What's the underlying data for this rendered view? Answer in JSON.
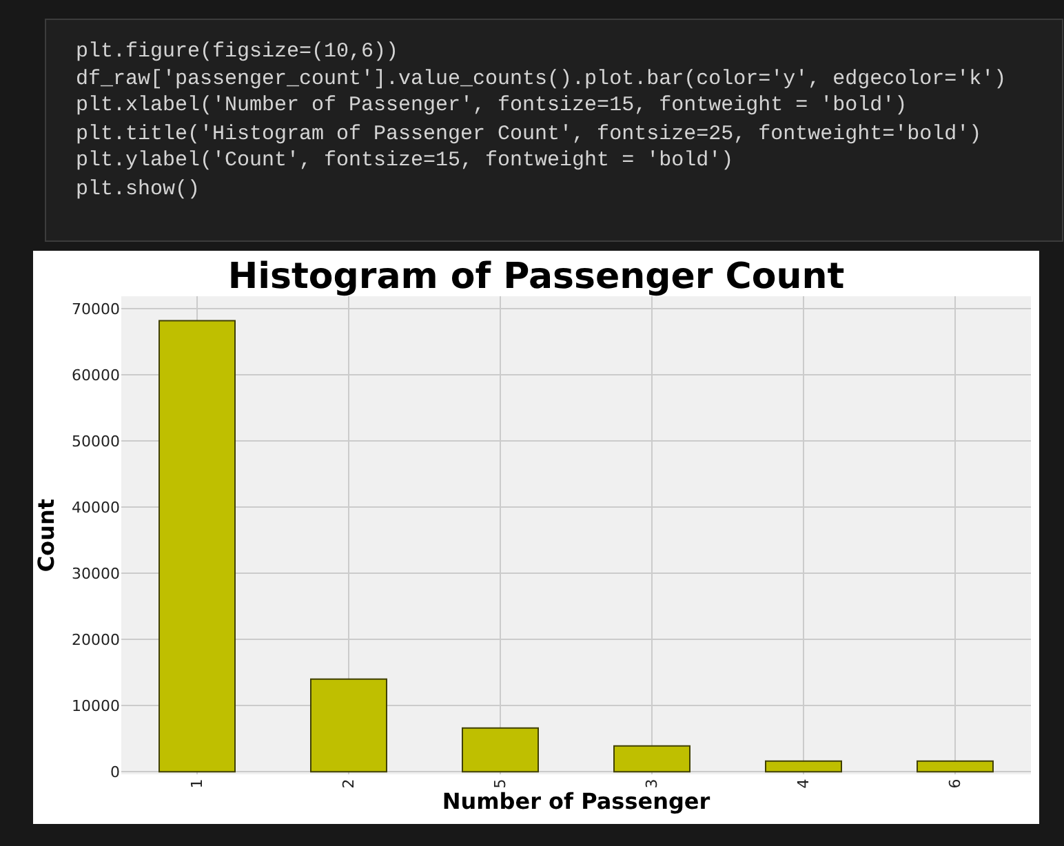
{
  "chart_data": {
    "type": "bar",
    "title": "Histogram of Passenger Count",
    "xlabel": "Number of Passenger",
    "ylabel": "Count",
    "categories": [
      "1",
      "2",
      "5",
      "3",
      "4",
      "6"
    ],
    "values": [
      68200,
      14000,
      6600,
      3900,
      1600,
      1600
    ],
    "color": "#bfbf00",
    "ylim": [
      -400,
      71900
    ],
    "yticks": [
      0,
      10000,
      20000,
      30000,
      40000,
      50000,
      60000,
      70000
    ],
    "grid": true,
    "annotations": [
      "plt.figure(figsize=(10,6))",
      "df_raw['passenger_count'].value_counts().plot.bar(color='y', edgecolor='k')",
      "plt.xlabel('Number of Passenger', fontsize=15, fontweight = 'bold')",
      "plt.title('Histogram of Passenger Count', fontsize=25, fontweight='bold')",
      "plt.ylabel('Count', fontsize=15, fontweight = 'bold')",
      "plt.show()"
    ]
  }
}
